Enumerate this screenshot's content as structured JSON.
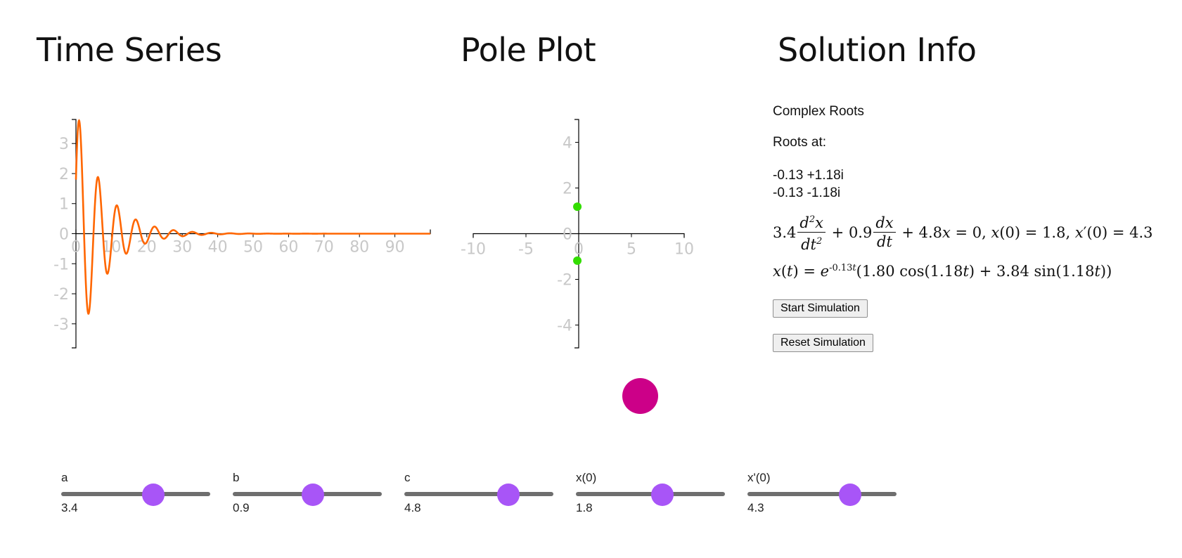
{
  "sections": {
    "time_series": "Time Series",
    "pole_plot": "Pole Plot",
    "solution_info": "Solution Info"
  },
  "info": {
    "roots_type": "Complex Roots",
    "roots_label": "Roots at:",
    "roots": [
      "-0.13 +1.18i",
      "-0.13 -1.18i"
    ],
    "equation": {
      "a": "3.4",
      "b": "0.9",
      "c": "4.8",
      "x0": "1.8",
      "dx0": "4.3"
    },
    "solution": {
      "decay": "-0.13",
      "omega": "1.18",
      "c1": "1.80",
      "c2": "3.84"
    }
  },
  "buttons": {
    "start": "Start Simulation",
    "reset": "Reset Simulation"
  },
  "sliders": [
    {
      "label": "a",
      "value": "3.4",
      "position": 0.62
    },
    {
      "label": "b",
      "value": "0.9",
      "position": 0.54
    },
    {
      "label": "c",
      "value": "4.8",
      "position": 0.7
    },
    {
      "label": "x(0)",
      "value": "1.8",
      "position": 0.58
    },
    {
      "label": "x'(0)",
      "value": "4.3",
      "position": 0.69
    }
  ],
  "colors": {
    "curve": "#ff6600",
    "pole": "#33dd00",
    "mass": "#cc0088",
    "slider_knob": "#a855f7",
    "tick_label": "#c8c8c8"
  },
  "chart_data": [
    {
      "type": "line",
      "name": "time-series",
      "title": "Time Series",
      "xlim": [
        0,
        100
      ],
      "ylim": [
        -3.8,
        3.8
      ],
      "x_ticks": [
        0,
        10,
        20,
        30,
        40,
        50,
        60,
        70,
        80,
        90
      ],
      "y_ticks": [
        -3,
        -2,
        -1,
        0,
        1,
        2,
        3
      ],
      "function": {
        "x0": 1.8,
        "c1": 1.8,
        "c2": 3.84,
        "decay": 0.13,
        "omega": 1.18,
        "t_start": 0,
        "t_end": 100
      },
      "grid": false
    },
    {
      "type": "scatter",
      "name": "pole-plot",
      "title": "Pole Plot",
      "xlim": [
        -10,
        10
      ],
      "ylim": [
        -5,
        5
      ],
      "x_ticks": [
        -10,
        -5,
        0,
        5,
        10
      ],
      "y_ticks": [
        -4,
        -2,
        0,
        2,
        4
      ],
      "points": [
        {
          "x": -0.13,
          "y": 1.18
        },
        {
          "x": -0.13,
          "y": -1.18
        }
      ],
      "grid": false
    }
  ]
}
